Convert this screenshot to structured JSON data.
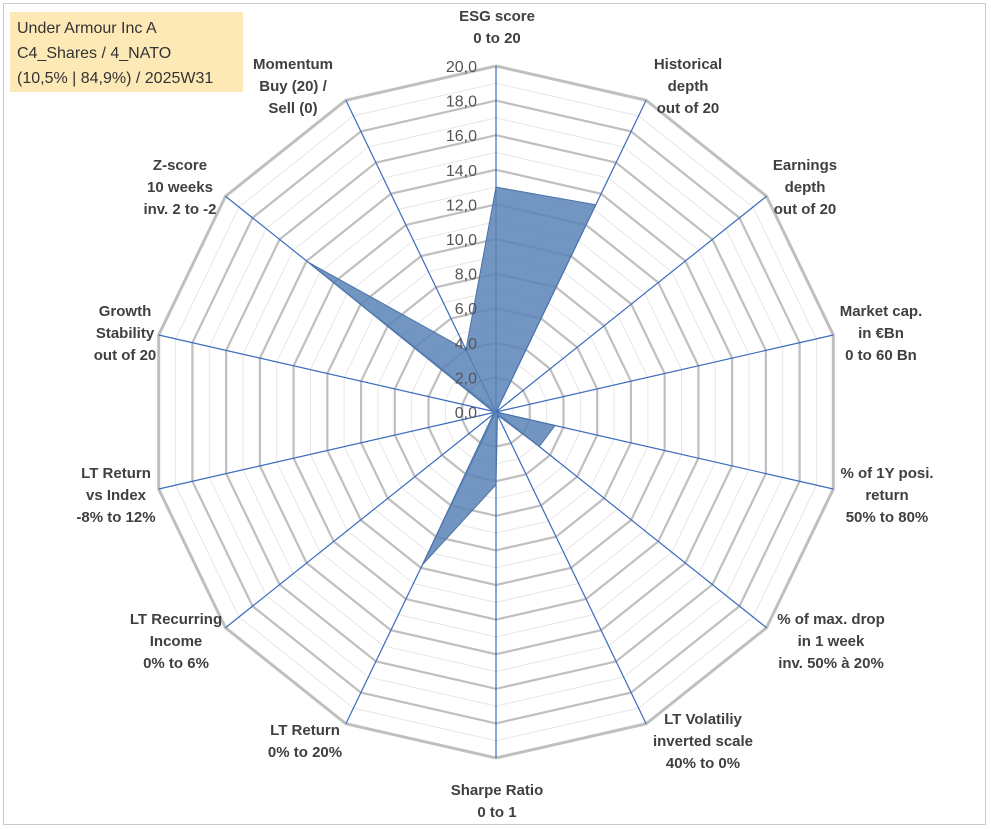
{
  "info": {
    "line1": "Under Armour Inc A",
    "line2": "C4_Shares / 4_NATO",
    "line3": "(10,5% | 84,9%) / 2025W31"
  },
  "chart_data": {
    "type": "radar",
    "scale": [
      0,
      20
    ],
    "tick_step": 2,
    "ticks": [
      "0,0",
      "2,0",
      "4,0",
      "6,0",
      "8,0",
      "10,0",
      "12,0",
      "14,0",
      "16,0",
      "18,0",
      "20,0"
    ],
    "categories": [
      [
        "ESG score",
        "0 to 20"
      ],
      [
        "Historical",
        "depth",
        "out of 20"
      ],
      [
        "Earnings",
        "depth",
        "out of 20"
      ],
      [
        "Market cap.",
        "in €Bn",
        "0 to 60 Bn"
      ],
      [
        "% of 1Y posi.",
        "return",
        "50% to 80%"
      ],
      [
        "% of max. drop",
        "in 1 week",
        "inv. 50% à 20%"
      ],
      [
        "LT Volatiliy",
        "inverted scale",
        "40% to 0%"
      ],
      [
        "Sharpe Ratio",
        "0 to 1"
      ],
      [
        "LT Return",
        "0% to 20%"
      ],
      [
        "LT Recurring",
        "Income",
        "0% to 6%"
      ],
      [
        "LT Return",
        "vs Index",
        "-8% to 12%"
      ],
      [
        "Growth",
        "Stability",
        "out of 20"
      ],
      [
        "Z-score",
        "10 weeks",
        "inv. 2 to -2"
      ],
      [
        "Momentum",
        "Buy (20) /",
        "Sell (0)"
      ]
    ],
    "series": [
      {
        "values": [
          13.0,
          13.3,
          0.0,
          0.0,
          3.5,
          3.2,
          0.2,
          4.2,
          9.8,
          0.2,
          0.2,
          0.2,
          13.9,
          4.0
        ],
        "color": "#5b82b6"
      }
    ],
    "grid": true,
    "legend": "none"
  }
}
